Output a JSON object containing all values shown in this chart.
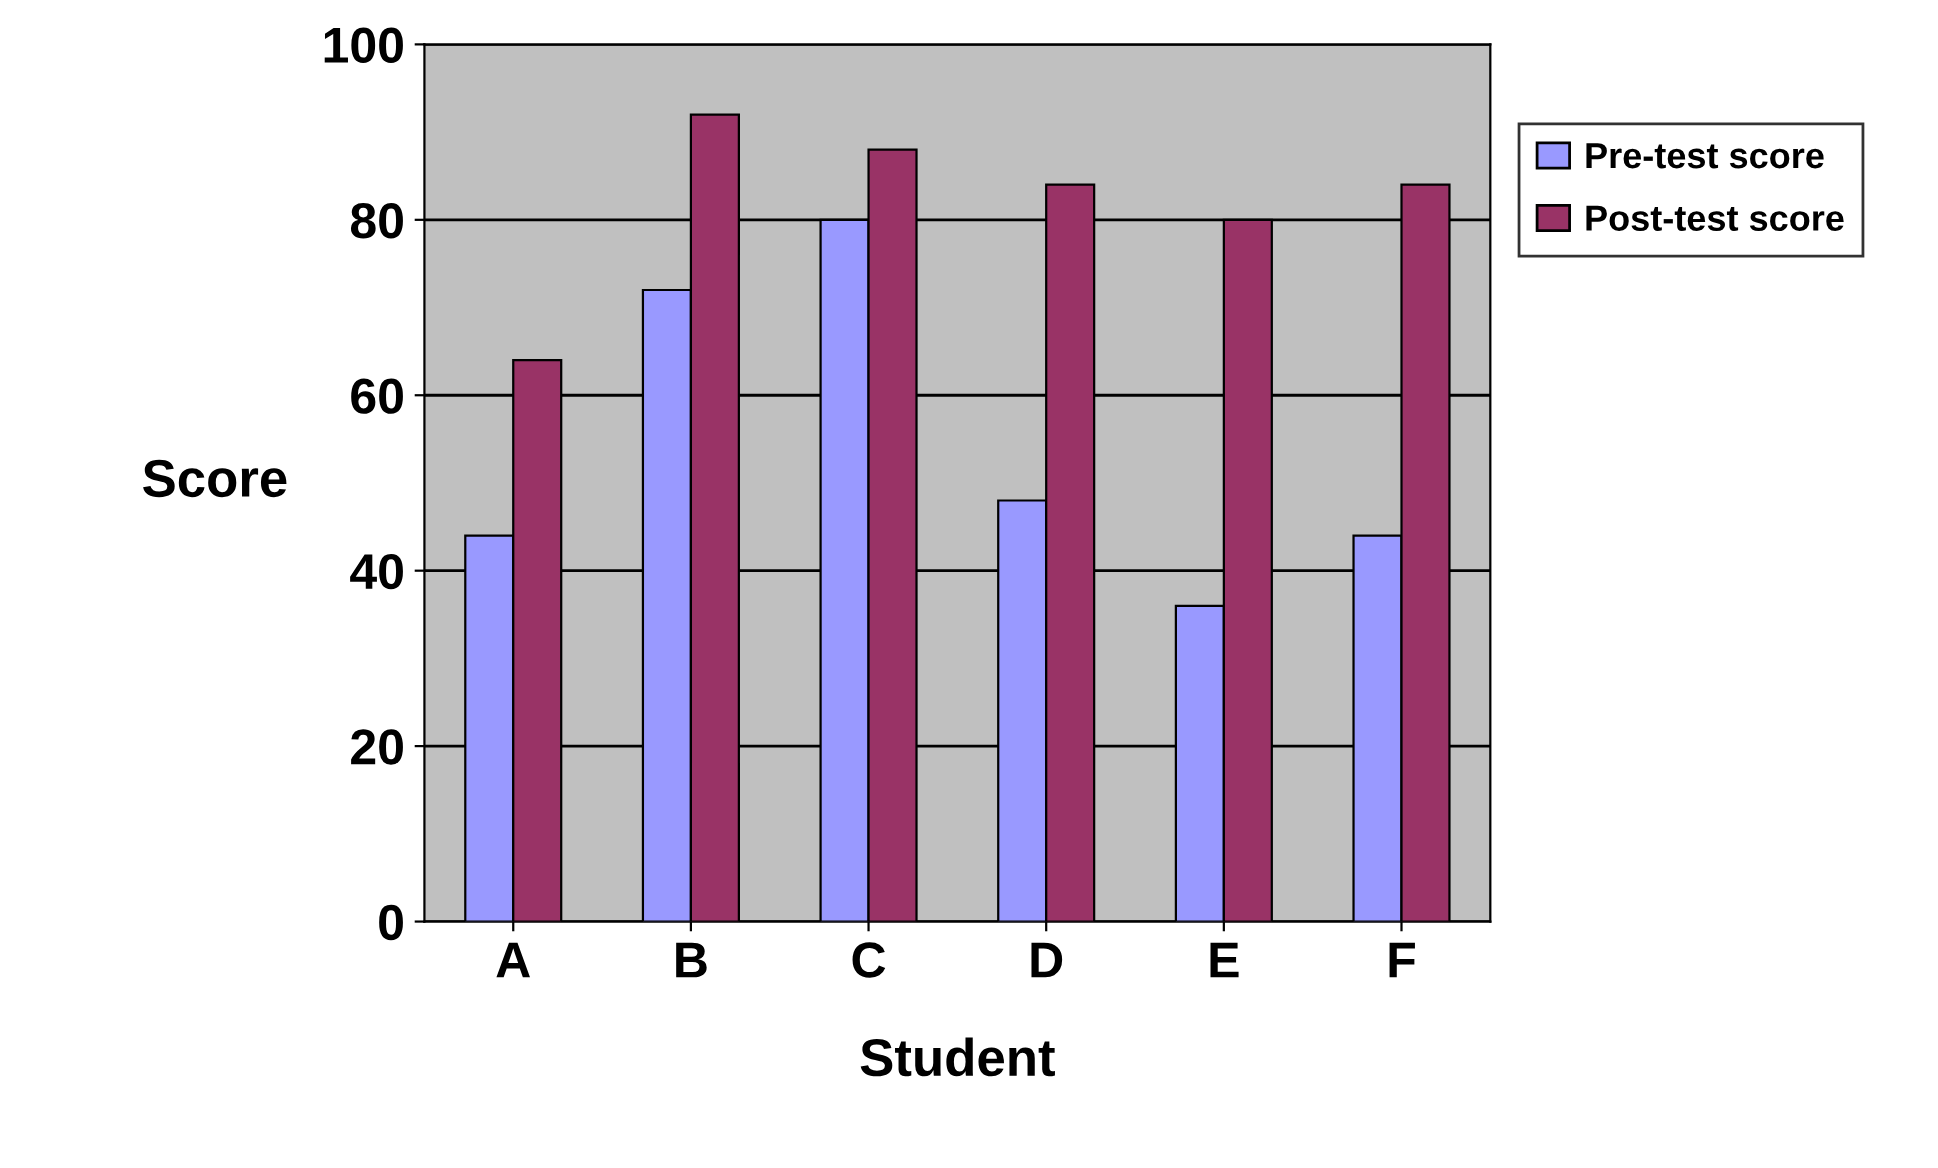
{
  "chart_data": {
    "type": "bar",
    "xlabel": "Student",
    "ylabel": "Score",
    "categories": [
      "A",
      "B",
      "C",
      "D",
      "E",
      "F"
    ],
    "series": [
      {
        "name": "Pre-test score",
        "color": "#9999ff",
        "values": [
          44,
          72,
          80,
          48,
          36,
          44
        ]
      },
      {
        "name": "Post-test score",
        "color": "#993366",
        "values": [
          64,
          92,
          88,
          84,
          80,
          84
        ]
      }
    ],
    "ylim": [
      0,
      100
    ],
    "yticks": [
      0,
      20,
      40,
      60,
      80,
      100
    ],
    "grid": "y",
    "legend": "right"
  }
}
